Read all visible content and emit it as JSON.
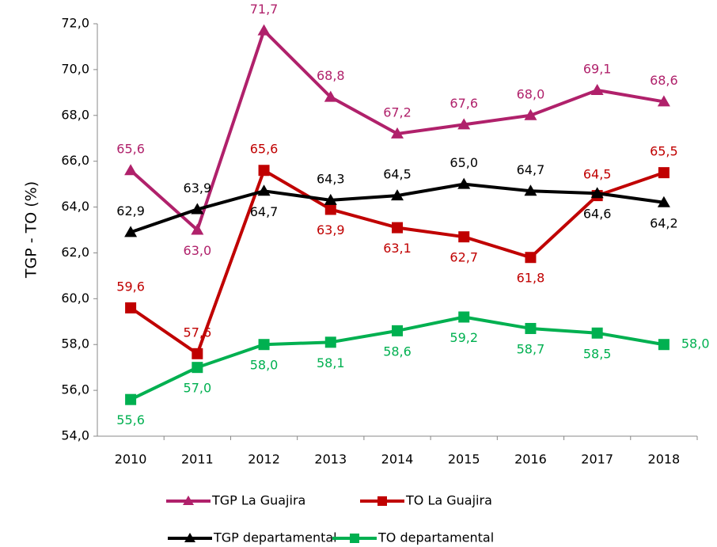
{
  "chart_data": {
    "type": "line",
    "y_label": "TGP - TO (%)",
    "categories": [
      "2010",
      "2011",
      "2012",
      "2013",
      "2014",
      "2015",
      "2016",
      "2017",
      "2018"
    ],
    "ylim": [
      54,
      72
    ],
    "yticks": [
      {
        "value": 54,
        "label": "54,0"
      },
      {
        "value": 56,
        "label": "56,0"
      },
      {
        "value": 58,
        "label": "58,0"
      },
      {
        "value": 60,
        "label": "60,0"
      },
      {
        "value": 62,
        "label": "62,0"
      },
      {
        "value": 64,
        "label": "64,0"
      },
      {
        "value": 66,
        "label": "66,0"
      },
      {
        "value": 68,
        "label": "68,0"
      },
      {
        "value": 70,
        "label": "70,0"
      },
      {
        "value": 72,
        "label": "72,0"
      }
    ],
    "series": [
      {
        "name": "TGP La Guajira",
        "color": "#b0216b",
        "marker": "triangle",
        "values": [
          65.6,
          63.0,
          71.7,
          68.8,
          67.2,
          67.6,
          68.0,
          69.1,
          68.6
        ],
        "value_labels": [
          "65,6",
          "63,0",
          "71,7",
          "68,8",
          "67,2",
          "67,6",
          "68,0",
          "69,1",
          "68,6"
        ]
      },
      {
        "name": "TO La Guajira",
        "color": "#c00000",
        "marker": "square",
        "values": [
          59.6,
          57.6,
          65.6,
          63.9,
          63.1,
          62.7,
          61.8,
          64.5,
          65.5
        ],
        "value_labels": [
          "59,6",
          "57,6",
          "65,6",
          "63,9",
          "63,1",
          "62,7",
          "61,8",
          "64,5",
          "65,5"
        ]
      },
      {
        "name": "TGP departamental",
        "color": "#000000",
        "marker": "triangle",
        "values": [
          62.9,
          63.9,
          64.7,
          64.3,
          64.5,
          65.0,
          64.7,
          64.6,
          64.2
        ],
        "value_labels": [
          "62,9",
          "63,9",
          "64,7",
          "64,3",
          "64,5",
          "65,0",
          "64,7",
          "64,6",
          "64,2"
        ]
      },
      {
        "name": "TO departamental",
        "color": "#00b050",
        "marker": "square",
        "values": [
          55.6,
          57.0,
          58.0,
          58.1,
          58.6,
          59.2,
          58.7,
          58.5,
          58.0
        ],
        "value_labels": [
          "55,6",
          "57,0",
          "58,0",
          "58,1",
          "58,6",
          "59,2",
          "58,7",
          "58,5",
          "58,0"
        ]
      }
    ]
  }
}
